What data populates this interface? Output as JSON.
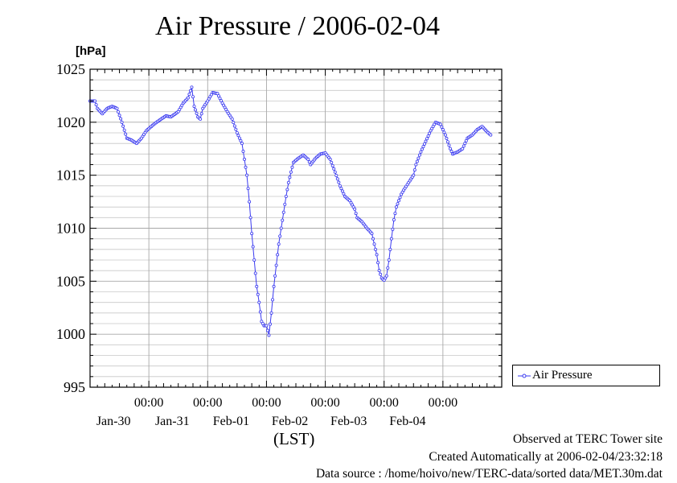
{
  "title": "Air Pressure / 2006-02-04",
  "unit": "[hPa]",
  "timezone_label": "(LST)",
  "credits": {
    "site": "Observed at TERC Tower site",
    "created": "Created Automatically at 2006-02-04/23:32:18",
    "source": "Data source : /home/hoivo/new/TERC-data/sorted  data/MET.30m.dat"
  },
  "colors": {
    "series": "#3a3af0",
    "grid": "#a8a8a8",
    "axis": "#000000"
  },
  "chart_data": {
    "type": "line",
    "title": "Air Pressure / 2006-02-04",
    "ylabel": "[hPa]",
    "xlabel": "(LST)",
    "ylim": [
      995,
      1025
    ],
    "yticks": [
      995,
      1000,
      1005,
      1010,
      1015,
      1020,
      1025
    ],
    "xlim_days": [
      "2006-01-29 00:00",
      "2006-02-05 00:00"
    ],
    "x_major_tick_labels": [
      {
        "time": "00:00",
        "date": "Jan-30"
      },
      {
        "time": "00:00",
        "date": "Jan-31"
      },
      {
        "time": "00:00",
        "date": "Feb-01"
      },
      {
        "time": "00:00",
        "date": "Feb-02"
      },
      {
        "time": "00:00",
        "date": "Feb-03"
      },
      {
        "time": "00:00",
        "date": "Feb-04"
      }
    ],
    "grid": true,
    "legend": "right",
    "series": [
      {
        "name": "Air Pressure",
        "marker": "circle",
        "points": [
          [
            "2006-01-29 00:00",
            1022.0
          ],
          [
            "2006-01-29 02:00",
            1022.0
          ],
          [
            "2006-01-29 03:00",
            1021.3
          ],
          [
            "2006-01-29 05:00",
            1020.8
          ],
          [
            "2006-01-29 07:00",
            1021.3
          ],
          [
            "2006-01-29 09:00",
            1021.5
          ],
          [
            "2006-01-29 11:00",
            1021.3
          ],
          [
            "2006-01-29 13:00",
            1020.0
          ],
          [
            "2006-01-29 15:00",
            1018.5
          ],
          [
            "2006-01-29 17:00",
            1018.3
          ],
          [
            "2006-01-29 19:00",
            1018.0
          ],
          [
            "2006-01-29 21:00",
            1018.5
          ],
          [
            "2006-01-29 23:00",
            1019.2
          ],
          [
            "2006-01-30 02:00",
            1019.8
          ],
          [
            "2006-01-30 05:00",
            1020.3
          ],
          [
            "2006-01-30 07:00",
            1020.6
          ],
          [
            "2006-01-30 09:00",
            1020.5
          ],
          [
            "2006-01-30 12:00",
            1021.0
          ],
          [
            "2006-01-30 14:00",
            1021.8
          ],
          [
            "2006-01-30 16:00",
            1022.3
          ],
          [
            "2006-01-30 17:30",
            1023.3
          ],
          [
            "2006-01-30 18:30",
            1021.5
          ],
          [
            "2006-01-30 20:00",
            1020.5
          ],
          [
            "2006-01-30 21:00",
            1020.3
          ],
          [
            "2006-01-30 22:00",
            1021.3
          ],
          [
            "2006-01-31 00:00",
            1022.0
          ],
          [
            "2006-01-31 02:00",
            1022.8
          ],
          [
            "2006-01-31 04:00",
            1022.7
          ],
          [
            "2006-01-31 06:00",
            1021.8
          ],
          [
            "2006-01-31 08:00",
            1021.0
          ],
          [
            "2006-01-31 10:00",
            1020.3
          ],
          [
            "2006-01-31 12:00",
            1019.0
          ],
          [
            "2006-01-31 14:00",
            1018.0
          ],
          [
            "2006-01-31 15:00",
            1016.5
          ],
          [
            "2006-01-31 16:00",
            1015.0
          ],
          [
            "2006-01-31 17:00",
            1012.5
          ],
          [
            "2006-01-31 18:00",
            1009.5
          ],
          [
            "2006-01-31 19:00",
            1007.0
          ],
          [
            "2006-01-31 20:00",
            1004.5
          ],
          [
            "2006-01-31 21:00",
            1003.0
          ],
          [
            "2006-01-31 22:00",
            1001.2
          ],
          [
            "2006-01-31 23:00",
            1000.8
          ],
          [
            "2006-02-01 00:00",
            1000.8
          ],
          [
            "2006-02-01 01:00",
            999.9
          ],
          [
            "2006-02-01 02:00",
            1002.0
          ],
          [
            "2006-02-01 03:00",
            1004.5
          ],
          [
            "2006-02-01 04:00",
            1006.5
          ],
          [
            "2006-02-01 05:00",
            1008.5
          ],
          [
            "2006-02-01 06:00",
            1010.0
          ],
          [
            "2006-02-01 07:00",
            1011.5
          ],
          [
            "2006-02-01 08:00",
            1013.0
          ],
          [
            "2006-02-01 09:00",
            1014.3
          ],
          [
            "2006-02-01 10:00",
            1015.3
          ],
          [
            "2006-02-01 11:00",
            1016.2
          ],
          [
            "2006-02-01 13:00",
            1016.6
          ],
          [
            "2006-02-01 15:00",
            1016.9
          ],
          [
            "2006-02-01 17:00",
            1016.5
          ],
          [
            "2006-02-01 18:00",
            1016.0
          ],
          [
            "2006-02-01 20:00",
            1016.6
          ],
          [
            "2006-02-01 22:00",
            1017.0
          ],
          [
            "2006-02-02 00:00",
            1017.1
          ],
          [
            "2006-02-02 02:00",
            1016.5
          ],
          [
            "2006-02-02 04:00",
            1015.3
          ],
          [
            "2006-02-02 06:00",
            1014.0
          ],
          [
            "2006-02-02 08:00",
            1013.0
          ],
          [
            "2006-02-02 10:00",
            1012.6
          ],
          [
            "2006-02-02 12:00",
            1011.8
          ],
          [
            "2006-02-02 13:00",
            1011.0
          ],
          [
            "2006-02-02 15:00",
            1010.6
          ],
          [
            "2006-02-02 17:00",
            1010.0
          ],
          [
            "2006-02-02 19:00",
            1009.5
          ],
          [
            "2006-02-02 20:00",
            1008.5
          ],
          [
            "2006-02-02 21:00",
            1007.5
          ],
          [
            "2006-02-02 22:00",
            1006.0
          ],
          [
            "2006-02-02 23:00",
            1005.3
          ],
          [
            "2006-02-03 00:00",
            1005.1
          ],
          [
            "2006-02-03 01:00",
            1005.5
          ],
          [
            "2006-02-03 02:00",
            1007.0
          ],
          [
            "2006-02-03 03:00",
            1009.0
          ],
          [
            "2006-02-03 04:00",
            1010.8
          ],
          [
            "2006-02-03 05:00",
            1012.0
          ],
          [
            "2006-02-03 06:00",
            1012.6
          ],
          [
            "2006-02-03 07:00",
            1013.2
          ],
          [
            "2006-02-03 08:00",
            1013.6
          ],
          [
            "2006-02-03 10:00",
            1014.3
          ],
          [
            "2006-02-03 12:00",
            1015.0
          ],
          [
            "2006-02-03 13:00",
            1016.0
          ],
          [
            "2006-02-03 15:00",
            1017.2
          ],
          [
            "2006-02-03 17:00",
            1018.2
          ],
          [
            "2006-02-03 19:00",
            1019.2
          ],
          [
            "2006-02-03 21:00",
            1020.0
          ],
          [
            "2006-02-03 23:00",
            1019.8
          ],
          [
            "2006-02-04 01:00",
            1018.8
          ],
          [
            "2006-02-04 03:00",
            1017.5
          ],
          [
            "2006-02-04 04:00",
            1017.0
          ],
          [
            "2006-02-04 06:00",
            1017.2
          ],
          [
            "2006-02-04 08:00",
            1017.5
          ],
          [
            "2006-02-04 10:00",
            1018.5
          ],
          [
            "2006-02-04 12:00",
            1018.8
          ],
          [
            "2006-02-04 14:00",
            1019.3
          ],
          [
            "2006-02-04 16:00",
            1019.6
          ],
          [
            "2006-02-04 18:00",
            1019.1
          ],
          [
            "2006-02-04 19:30",
            1018.8
          ]
        ]
      }
    ]
  }
}
